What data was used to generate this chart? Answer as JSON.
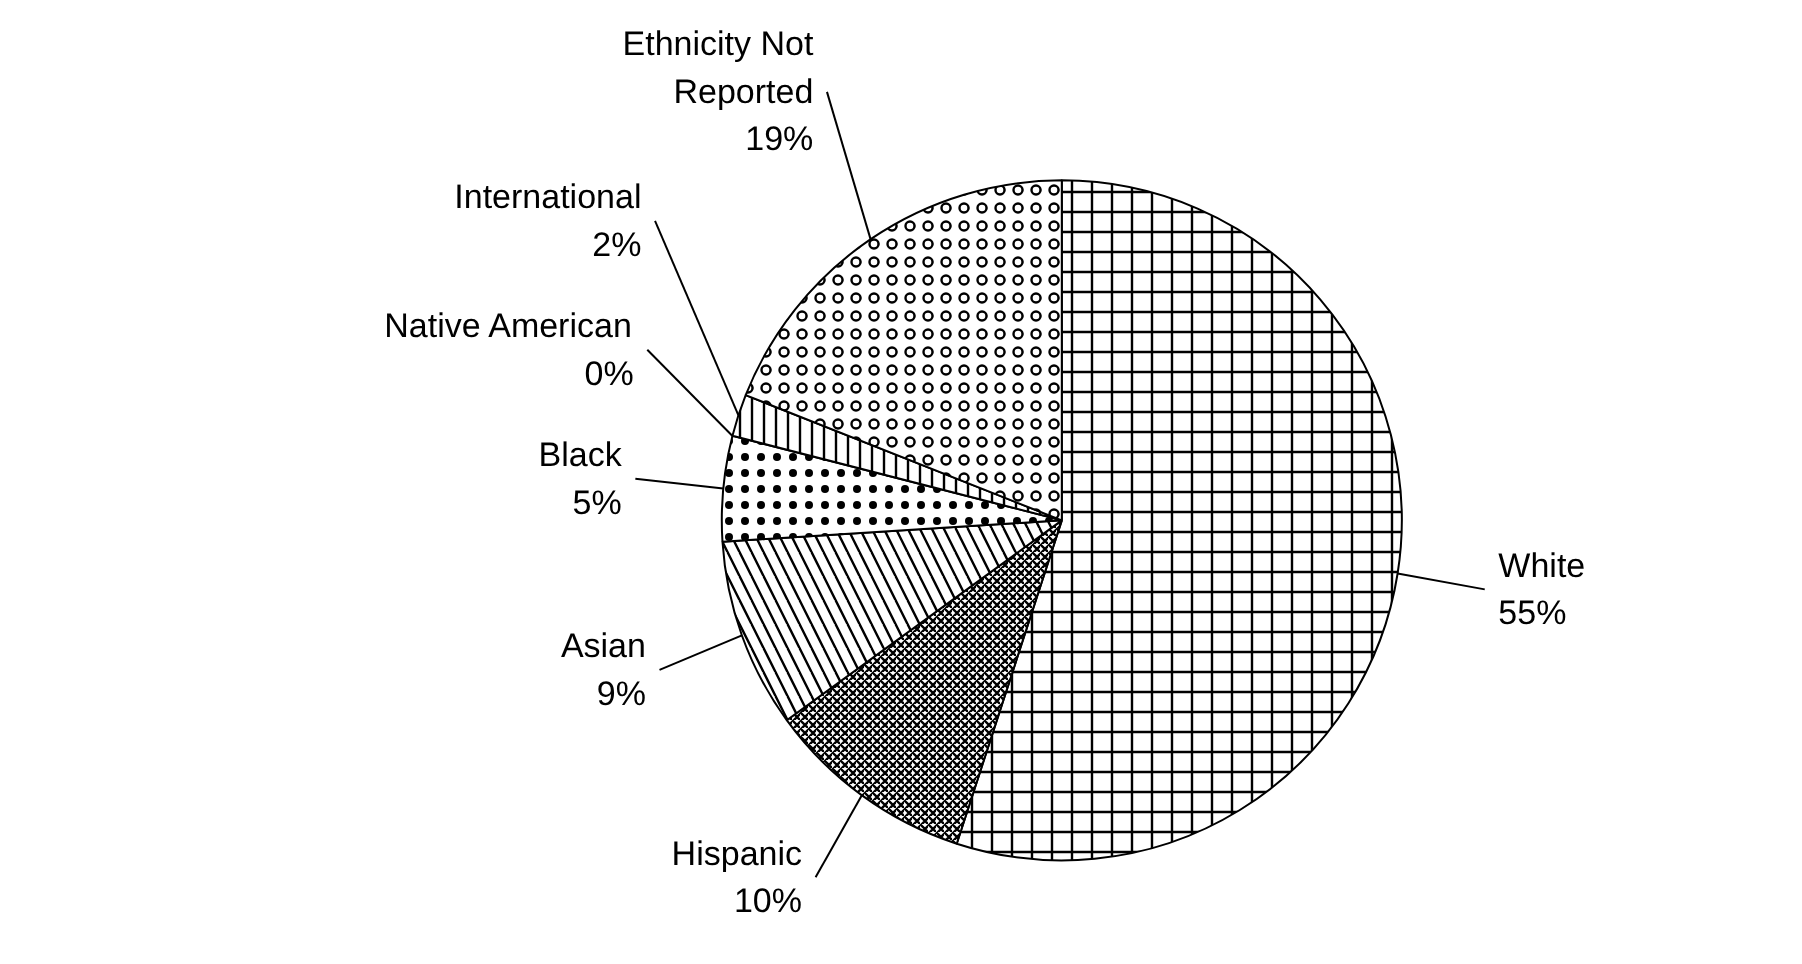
{
  "chart_data": {
    "type": "pie",
    "categories": [
      "White",
      "Hispanic",
      "Asian",
      "Black",
      "Native American",
      "International",
      "Ethnicity Not Reported"
    ],
    "values": [
      55,
      10,
      9,
      5,
      0,
      2,
      19
    ],
    "value_labels": [
      "55%",
      "10%",
      "9%",
      "5%",
      "0%",
      "2%",
      "19%"
    ],
    "colors": [
      "#ffffff",
      "#ffffff",
      "#ffffff",
      "#ffffff",
      "#ffffff",
      "#ffffff",
      "#ffffff"
    ]
  }
}
